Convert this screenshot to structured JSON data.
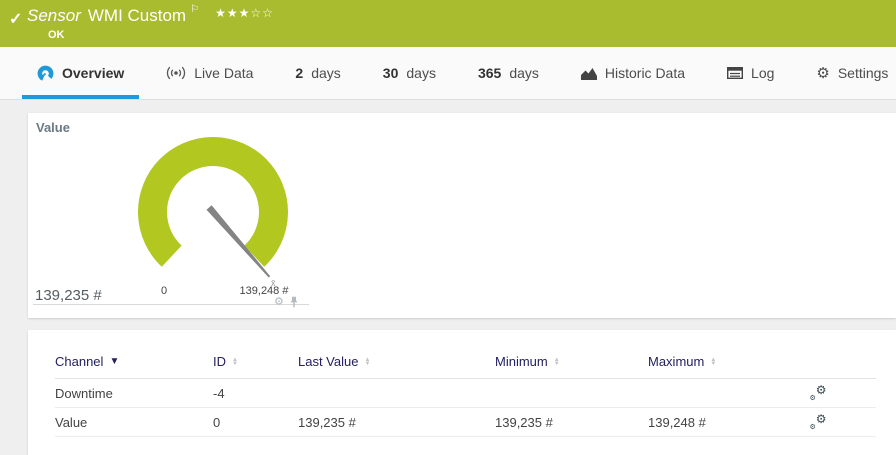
{
  "header": {
    "bg_color": "#a9bc2f",
    "title_prefix": "Sensor",
    "title": "WMI Custom",
    "status": "OK"
  },
  "icons": {
    "check": "✓",
    "flag": "⚐",
    "stars_filled": "★★★",
    "stars_empty": "☆☆",
    "gear": "⚙",
    "sort_desc": "▼",
    "sort_up": "▲",
    "sort_down": "▼"
  },
  "tabs": {
    "overview": {
      "label": "Overview"
    },
    "livedata": {
      "label": "Live Data"
    },
    "d2": {
      "num": "2",
      "label": "days"
    },
    "d30": {
      "num": "30",
      "label": "days"
    },
    "d365": {
      "num": "365",
      "label": "days"
    },
    "historic": {
      "label": "Historic Data"
    },
    "log": {
      "label": "Log"
    },
    "settings": {
      "label": "Settings"
    }
  },
  "gauge_panel": {
    "title": "Value",
    "current_value": "139,235 #",
    "min_label": "0",
    "max_label": "139,248 #",
    "marker": "x̄",
    "gauge_color": "#b2c720",
    "needle_angle_deg": 139
  },
  "chart_data": {
    "type": "gauge",
    "title": "Value",
    "min": 0,
    "max": 139248,
    "value": 139235,
    "unit": "#",
    "min_label": "0",
    "max_label": "139,248 #",
    "value_label": "139,235 #"
  },
  "table": {
    "columns": {
      "channel": "Channel",
      "id": "ID",
      "last_value": "Last Value",
      "minimum": "Minimum",
      "maximum": "Maximum"
    },
    "rows": [
      {
        "channel": "Downtime",
        "id": "-4",
        "last": "",
        "min": "",
        "max": ""
      },
      {
        "channel": "Value",
        "id": "0",
        "last": "139,235 #",
        "min": "139,235 #",
        "max": "139,248 #"
      }
    ]
  }
}
